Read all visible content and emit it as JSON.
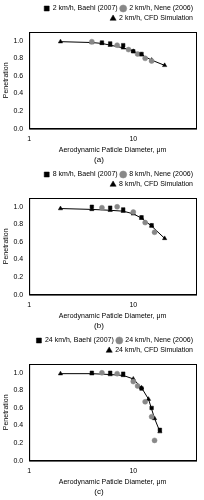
{
  "chart_data": [
    {
      "type": "scatter",
      "title": "(a)",
      "x_label": "Aerodynamic Paticle Diameter, μm",
      "y_label": "Penetration",
      "xlim": [
        1,
        40
      ],
      "xticks": [
        1,
        10
      ],
      "ylim": [
        0,
        1.1
      ],
      "yticks": [
        {
          "value": 0,
          "label": "0.0"
        },
        {
          "value": 0.2,
          "label": "0.2"
        },
        {
          "value": 0.4,
          "label": "0.4"
        },
        {
          "value": 0.6,
          "label": "0.6"
        },
        {
          "value": 0.8,
          "label": "0.8"
        },
        {
          "value": 1,
          "label": "1.0"
        }
      ],
      "log": "x",
      "grid": false,
      "legend": "upper right",
      "series": [
        {
          "name": "2 km/h, Baehl (2007)",
          "color": "#000000",
          "marker": "square",
          "line_style": "none",
          "x": [
            5,
            6,
            8,
            10,
            12
          ],
          "values": [
            0.98,
            0.97,
            0.95,
            0.88,
            0.85
          ]
        },
        {
          "name": "2 km/h, Nene (2006)",
          "color": "#888888",
          "marker": "circle",
          "line_style": "none",
          "x": [
            4,
            7,
            9,
            11,
            13,
            15
          ],
          "values": [
            0.99,
            0.95,
            0.9,
            0.85,
            0.8,
            0.77
          ]
        },
        {
          "name": "2 km/h, CFD Simulation",
          "color": "#000000",
          "marker": "triangle",
          "line_style": "solid",
          "x": [
            2,
            4,
            5,
            6,
            8,
            10,
            12,
            15,
            20
          ],
          "values": [
            0.99,
            0.98,
            0.97,
            0.95,
            0.92,
            0.88,
            0.84,
            0.78,
            0.72
          ]
        }
      ]
    },
    {
      "type": "scatter",
      "title": "(b)",
      "x_label": "Aerodynamic Paticle Diameter, μm",
      "y_label": "Penetration",
      "xlim": [
        1,
        40
      ],
      "xticks": [
        1,
        10
      ],
      "ylim": [
        0,
        1.1
      ],
      "yticks": [
        {
          "value": 0,
          "label": "0.0"
        },
        {
          "value": 0.2,
          "label": "0.2"
        },
        {
          "value": 0.4,
          "label": "0.4"
        },
        {
          "value": 0.6,
          "label": "0.6"
        },
        {
          "value": 0.8,
          "label": "0.8"
        },
        {
          "value": 1,
          "label": "1.0"
        }
      ],
      "log": "x",
      "grid": false,
      "legend": "upper right",
      "series": [
        {
          "name": "8 km/h, Baehl (2007)",
          "color": "#000000",
          "marker": "square",
          "line_style": "none",
          "x": [
            4,
            6,
            8,
            12,
            15
          ],
          "values": [
            1.0,
            0.99,
            0.97,
            0.88,
            0.79
          ]
        },
        {
          "name": "8 km/h, Nene (2006)",
          "color": "#888888",
          "marker": "circle",
          "line_style": "none",
          "x": [
            5,
            7,
            10,
            13,
            16
          ],
          "values": [
            0.99,
            1.0,
            0.94,
            0.82,
            0.71
          ]
        },
        {
          "name": "8 km/h, CFD Simulation",
          "color": "#000000",
          "marker": "triangle",
          "line_style": "solid",
          "x": [
            2,
            4,
            6,
            8,
            10,
            12,
            15,
            20
          ],
          "values": [
            0.98,
            0.97,
            0.96,
            0.95,
            0.92,
            0.87,
            0.78,
            0.64
          ]
        }
      ]
    },
    {
      "type": "scatter",
      "title": "(c)",
      "x_label": "Aerodynamic Paticle Diameter, μm",
      "y_label": "Penetration",
      "xlim": [
        1,
        40
      ],
      "xticks": [
        1,
        10
      ],
      "ylim": [
        0,
        1.1
      ],
      "yticks": [
        {
          "value": 0,
          "label": "0.0"
        },
        {
          "value": 0.2,
          "label": "0.2"
        },
        {
          "value": 0.4,
          "label": "0.4"
        },
        {
          "value": 0.6,
          "label": "0.6"
        },
        {
          "value": 0.8,
          "label": "0.8"
        },
        {
          "value": 1,
          "label": "1.0"
        }
      ],
      "log": "x",
      "grid": false,
      "legend": "upper right",
      "series": [
        {
          "name": "24 km/h, Baehl (2007)",
          "color": "#000000",
          "marker": "square",
          "line_style": "none",
          "x": [
            4,
            6,
            8,
            12,
            15,
            18
          ],
          "values": [
            1.0,
            1.0,
            0.99,
            0.82,
            0.6,
            0.35
          ]
        },
        {
          "name": "24 km/h, Nene (2006)",
          "color": "#888888",
          "marker": "circle",
          "line_style": "none",
          "x": [
            5,
            7,
            10,
            11,
            13,
            15,
            16
          ],
          "values": [
            1.0,
            0.99,
            0.9,
            0.85,
            0.67,
            0.5,
            0.23
          ]
        },
        {
          "name": "24 km/h, CFD Simulation",
          "color": "#000000",
          "marker": "triangle",
          "line_style": "solid",
          "x": [
            2,
            4,
            6,
            8,
            10,
            12,
            14,
            16,
            18
          ],
          "values": [
            0.99,
            0.99,
            0.98,
            0.97,
            0.93,
            0.83,
            0.7,
            0.48,
            0.33
          ]
        }
      ]
    }
  ]
}
